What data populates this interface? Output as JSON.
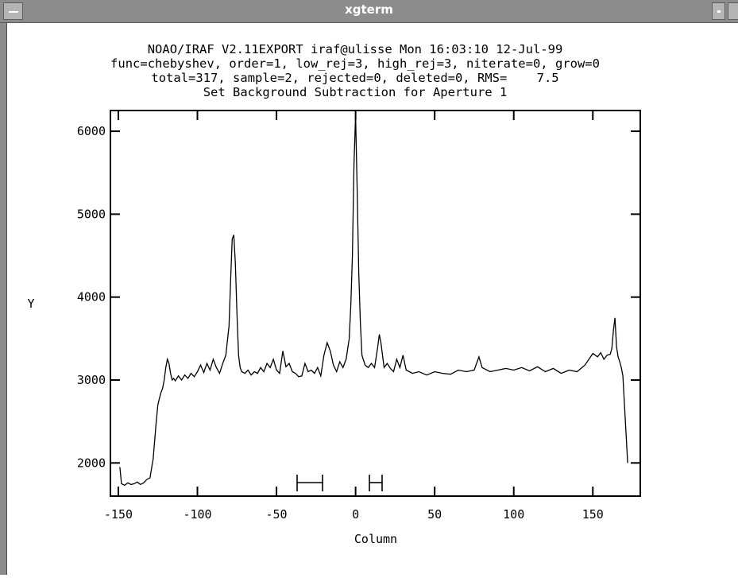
{
  "window": {
    "title": "xgterm"
  },
  "graph": {
    "header_lines": [
      "NOAO/IRAF V2.11EXPORT iraf@ulisse Mon 16:03:10 12-Jul-99",
      "func=chebyshev, order=1, low_rej=3, high_rej=3, niterate=0, grow=0",
      "total=317, sample=2, rejected=0, deleted=0, RMS=    7.5",
      "Set Background Subtraction for Aperture 1"
    ]
  },
  "chart_data": {
    "type": "line",
    "title": "Set Background Subtraction for Aperture 1",
    "xlabel": "Column",
    "ylabel": "Y",
    "xlim": [
      -155,
      180
    ],
    "ylim": [
      1600,
      6250
    ],
    "xticks": [
      -150,
      -100,
      -50,
      0,
      50,
      100,
      150
    ],
    "xtick_labels": [
      "-150",
      "-100",
      "-50",
      "0",
      "50",
      "100",
      "150"
    ],
    "yticks": [
      2000,
      3000,
      4000,
      5000,
      6000
    ],
    "ytick_labels": [
      "2000",
      "3000",
      "4000",
      "5000",
      "6000"
    ],
    "grid": false,
    "series": [
      {
        "x": [
          -149,
          -148,
          -146,
          -144,
          -142,
          -140,
          -138,
          -136,
          -134,
          -132,
          -130,
          -128,
          -126,
          -125,
          -124,
          -123,
          -122,
          -121,
          -120,
          -119,
          -118,
          -117,
          -116,
          -115,
          -114,
          -112,
          -110,
          -108,
          -106,
          -104,
          -102,
          -100,
          -98,
          -96,
          -94,
          -92,
          -90,
          -88,
          -86,
          -84,
          -82,
          -80,
          -79,
          -78,
          -77,
          -76,
          -75,
          -74,
          -73,
          -72,
          -70,
          -68,
          -66,
          -64,
          -62,
          -60,
          -58,
          -56,
          -54,
          -52,
          -50,
          -48,
          -46,
          -44,
          -42,
          -40,
          -38,
          -36,
          -34,
          -32,
          -30,
          -28,
          -26,
          -24,
          -22,
          -20,
          -18,
          -16,
          -14,
          -12,
          -10,
          -8,
          -6,
          -4,
          -3,
          -2,
          -1,
          0,
          1,
          2,
          3,
          4,
          6,
          8,
          10,
          12,
          14,
          15,
          16,
          18,
          20,
          22,
          24,
          26,
          28,
          30,
          32,
          34,
          36,
          40,
          45,
          50,
          55,
          60,
          65,
          70,
          75,
          78,
          80,
          85,
          90,
          95,
          100,
          105,
          110,
          115,
          120,
          125,
          130,
          135,
          140,
          145,
          150,
          153,
          155,
          157,
          159,
          161,
          162,
          163,
          164,
          165,
          166,
          167,
          168,
          169,
          170,
          171,
          172
        ],
        "values": [
          1950,
          1750,
          1730,
          1760,
          1740,
          1750,
          1770,
          1740,
          1760,
          1800,
          1820,
          2050,
          2500,
          2700,
          2780,
          2850,
          2900,
          3000,
          3150,
          3250,
          3200,
          3080,
          3000,
          3020,
          2990,
          3050,
          3000,
          3060,
          3020,
          3080,
          3040,
          3100,
          3180,
          3090,
          3200,
          3120,
          3250,
          3150,
          3080,
          3200,
          3300,
          3650,
          4200,
          4700,
          4750,
          4400,
          3800,
          3300,
          3150,
          3100,
          3080,
          3120,
          3060,
          3100,
          3080,
          3150,
          3100,
          3200,
          3150,
          3250,
          3120,
          3080,
          3350,
          3160,
          3200,
          3100,
          3080,
          3040,
          3050,
          3200,
          3100,
          3120,
          3080,
          3150,
          3050,
          3300,
          3450,
          3350,
          3180,
          3100,
          3220,
          3150,
          3250,
          3500,
          3900,
          4500,
          5600,
          6200,
          5300,
          4300,
          3700,
          3300,
          3180,
          3150,
          3200,
          3150,
          3400,
          3550,
          3450,
          3150,
          3200,
          3140,
          3100,
          3250,
          3150,
          3300,
          3120,
          3100,
          3080,
          3100,
          3060,
          3100,
          3080,
          3070,
          3120,
          3100,
          3120,
          3280,
          3150,
          3100,
          3120,
          3140,
          3120,
          3150,
          3110,
          3160,
          3100,
          3140,
          3080,
          3120,
          3100,
          3180,
          3320,
          3280,
          3330,
          3250,
          3300,
          3310,
          3380,
          3600,
          3750,
          3400,
          3280,
          3220,
          3150,
          3050,
          2700,
          2350,
          2000
        ]
      }
    ]
  }
}
